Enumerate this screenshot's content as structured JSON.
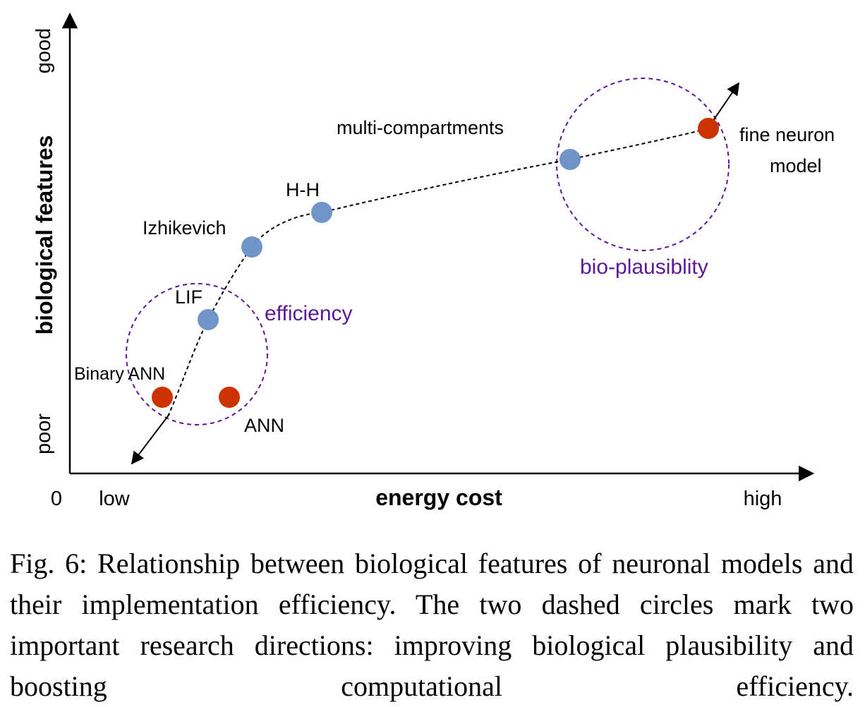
{
  "axes": {
    "x_title": "energy cost",
    "y_title": "biological features",
    "x_origin": "0",
    "x_low": "low",
    "x_high": "high",
    "y_low": "poor",
    "y_high": "good"
  },
  "models": [
    {
      "label": "Binary ANN",
      "color": "#cc3300"
    },
    {
      "label": "ANN",
      "color": "#cc3300"
    },
    {
      "label": "LIF",
      "color": "#6f94c8"
    },
    {
      "label": "Izhikevich",
      "color": "#6f94c8"
    },
    {
      "label": "H-H",
      "color": "#6f94c8"
    },
    {
      "label": "multi-compartments",
      "color": "#6f94c8"
    },
    {
      "label": "fine neuron",
      "color": "#cc3300"
    },
    {
      "label": "model",
      "color": "#cc3300"
    }
  ],
  "regions": {
    "efficiency": "efficiency",
    "bio_plausibility": "bio-plausiblity",
    "color": "#5a189a"
  },
  "caption": "Fig. 6: Relationship between biological features of neuronal models and their implementation efficiency. The two dashed circles mark two important research directions: improving biological plausibility and boosting computational efficiency."
}
